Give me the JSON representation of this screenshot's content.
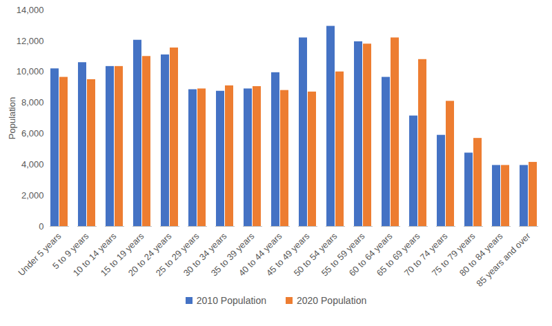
{
  "chart_data": {
    "type": "bar",
    "categories": [
      "Under 5 years",
      "5 to 9 years",
      "10 to 14 years",
      "15 to 19 years",
      "20 to 24 years",
      "25 to 29 years",
      "30 to 34 years",
      "35 to 39 years",
      "40 to 44 years",
      "45 to 49 years",
      "50 to 54 years",
      "55 to 59 years",
      "60 to 64 years",
      "65 to 69 years",
      "70 to 74 years",
      "75 to 79 years",
      "80 to 84 years",
      "85 years and over"
    ],
    "series": [
      {
        "name": "2010 Population",
        "color": "#4472c4",
        "values": [
          10200,
          10600,
          10350,
          12050,
          11100,
          8850,
          8750,
          8900,
          9950,
          12200,
          12950,
          11950,
          9650,
          7150,
          5900,
          4750,
          3950,
          3950
        ]
      },
      {
        "name": "2020 Population",
        "color": "#ed7d31",
        "values": [
          9650,
          9500,
          10350,
          11000,
          11550,
          8900,
          9100,
          9050,
          8800,
          8700,
          10000,
          11800,
          12200,
          10800,
          8100,
          5700,
          3950,
          4150
        ]
      }
    ],
    "y_label": "Population",
    "ylim": [
      0,
      14000
    ],
    "yticks": [
      0,
      {
        "value": 2000,
        "label": "2,000"
      },
      {
        "value": 4000,
        "label": "4,000"
      },
      {
        "value": 6000,
        "label": "6,000"
      },
      {
        "value": 8000,
        "label": "8,000"
      },
      {
        "value": 10000,
        "label": "10,000"
      },
      {
        "value": 12000,
        "label": "12,000"
      },
      {
        "value": 14000,
        "label": "14,000"
      }
    ],
    "grid": false,
    "legend": "bottom"
  }
}
